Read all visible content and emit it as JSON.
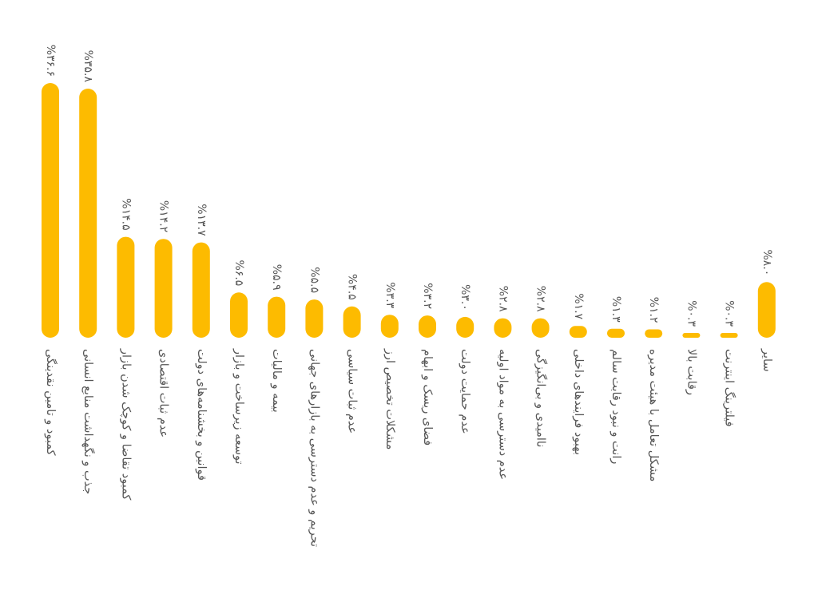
{
  "chart_data": {
    "type": "bar",
    "orientation": "vertical",
    "bar_color": "#FDBB00",
    "text_color": "#555555",
    "background": "#FFFFFF",
    "grid": false,
    "axes_visible": false,
    "labels_rotated": "90deg clockwise",
    "categories": [
      "کمبود و تامین نقدینگی",
      "جذب و نگهداشت منابع انسانی",
      "کمبود تقاضا و کوچک شدن بازار",
      "عدم ثبات اقتصادی",
      "قوانین و بخشنامه‌های دولت",
      "توسعه زیرساخت و بازار",
      "بیمه و مالیات",
      "تحریم و عدم دسترسی به بازارهای جهانی",
      "عدم ثبات سیاسی",
      "مشکلات تخصیص ارز",
      "فضای ریسک و ابهام",
      "عدم حمایت دولت",
      "عدم دسترسی به مواد اولیه",
      "ناامیدی و بی‌انگیزگی",
      "بهبود فرایندهای داخلی",
      "رانت و نبود رقابت سالم",
      "مشکل تعامل با هیئت مدیره",
      "رقابت بالا",
      "فیلترینگ اینترنت",
      "سایر"
    ],
    "values": [
      36.6,
      35.8,
      14.5,
      14.2,
      13.7,
      6.5,
      5.9,
      5.5,
      4.5,
      3.3,
      3.2,
      3.0,
      2.8,
      2.8,
      1.7,
      1.3,
      1.2,
      0.3,
      0.3,
      8.0
    ],
    "value_labels": [
      "%۳۶.۶",
      "%۳۵.۸",
      "%۱۴.۵",
      "%۱۴.۲",
      "%۱۳.۷",
      "%۶.۵",
      "%۵.۹",
      "%۵.۵",
      "%۴.۵",
      "%۳.۳",
      "%۳.۲",
      "%۳.۰",
      "%۲.۸",
      "%۲.۸",
      "%۱.۷",
      "%۱.۳",
      "%۱.۲",
      "%۰.۳",
      "%۰.۳",
      "%۸.۰"
    ],
    "unit": "%",
    "ylim": [
      0,
      36.6
    ]
  }
}
